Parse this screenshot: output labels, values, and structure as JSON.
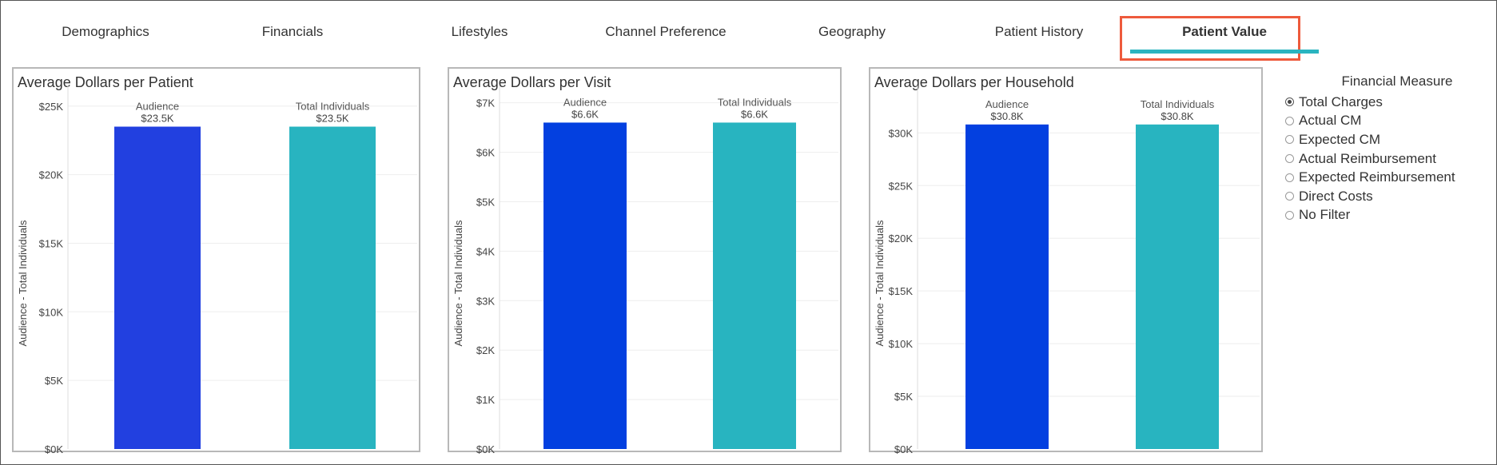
{
  "tabs": [
    {
      "label": "Demographics",
      "active": false
    },
    {
      "label": "Financials",
      "active": false
    },
    {
      "label": "Lifestyles",
      "active": false
    },
    {
      "label": "Channel Preference",
      "active": false
    },
    {
      "label": "Geography",
      "active": false
    },
    {
      "label": "Patient History",
      "active": false
    },
    {
      "label": "Patient Value",
      "active": true
    }
  ],
  "colors": {
    "audience_bar": "#2240e0",
    "audience_bar_alt": "#0340e0",
    "total_bar": "#28b4c0",
    "highlight": "#ee5a3c",
    "gridline": "#eeeeee"
  },
  "chart_data": [
    {
      "type": "bar",
      "title": "Average Dollars per Patient",
      "ylabel": "Audience - Total Individuals",
      "xlabel": "",
      "categories": [
        "Audience",
        "Total Individuals"
      ],
      "values": [
        23500,
        23500
      ],
      "value_labels": [
        "$23.5K",
        "$23.5K"
      ],
      "ylim": [
        0,
        26500
      ],
      "yticks": [
        0,
        5000,
        10000,
        15000,
        20000,
        25000
      ],
      "ytick_labels": [
        "$0K",
        "$5K",
        "$10K",
        "$15K",
        "$20K",
        "$25K"
      ],
      "grid": true
    },
    {
      "type": "bar",
      "title": "Average Dollars per Visit",
      "ylabel": "Audience - Total Individuals",
      "xlabel": "",
      "categories": [
        "Audience",
        "Total Individuals"
      ],
      "values": [
        6600,
        6600
      ],
      "value_labels": [
        "$6.6K",
        "$6.6K"
      ],
      "ylim": [
        0,
        7350
      ],
      "yticks": [
        0,
        1000,
        2000,
        3000,
        4000,
        5000,
        6000,
        7000
      ],
      "ytick_labels": [
        "$0K",
        "$1K",
        "$2K",
        "$3K",
        "$4K",
        "$5K",
        "$6K",
        "$7K"
      ],
      "grid": true
    },
    {
      "type": "bar",
      "title": "Average Dollars per Household",
      "ylabel": "Audience - Total Individuals",
      "xlabel": "",
      "categories": [
        "Audience",
        "Total Individuals"
      ],
      "values": [
        30800,
        30800
      ],
      "value_labels": [
        "$30.8K",
        "$30.8K"
      ],
      "ylim": [
        0,
        34500
      ],
      "yticks": [
        0,
        5000,
        10000,
        15000,
        20000,
        25000,
        30000
      ],
      "ytick_labels": [
        "$0K",
        "$5K",
        "$10K",
        "$15K",
        "$20K",
        "$25K",
        "$30K"
      ],
      "grid": true
    }
  ],
  "filter": {
    "title": "Financial Measure",
    "options": [
      {
        "label": "Total Charges",
        "checked": true
      },
      {
        "label": "Actual CM",
        "checked": false
      },
      {
        "label": "Expected CM",
        "checked": false
      },
      {
        "label": "Actual Reimbursement",
        "checked": false
      },
      {
        "label": "Expected Reimbursement",
        "checked": false
      },
      {
        "label": "Direct Costs",
        "checked": false
      },
      {
        "label": "No Filter",
        "checked": false
      }
    ]
  }
}
